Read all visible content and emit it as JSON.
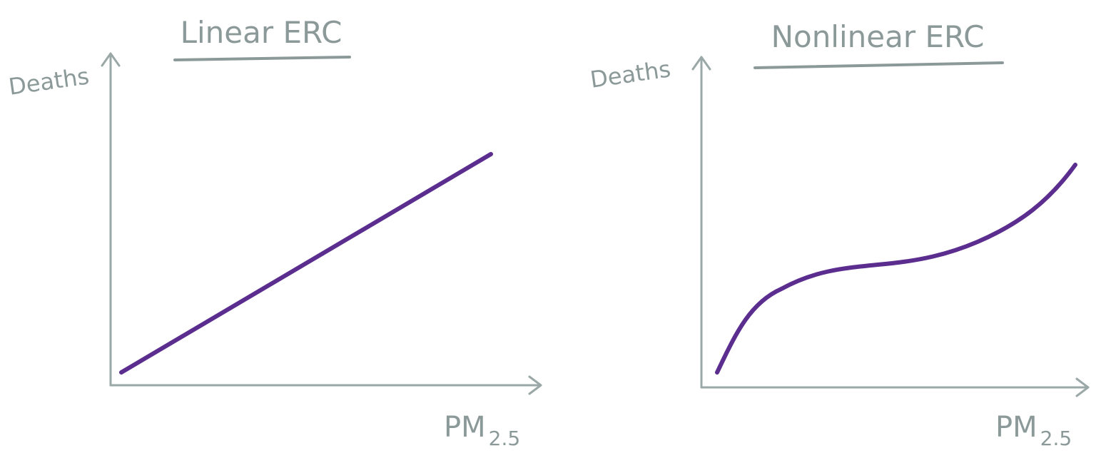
{
  "panels": [
    {
      "title": "Linear ERC",
      "y_label": "Deaths",
      "x_label": {
        "main": "PM",
        "sub": "2.5"
      }
    },
    {
      "title": "Nonlinear ERC",
      "y_label": "Deaths",
      "x_label": {
        "main": "PM",
        "sub": "2.5"
      }
    }
  ]
}
